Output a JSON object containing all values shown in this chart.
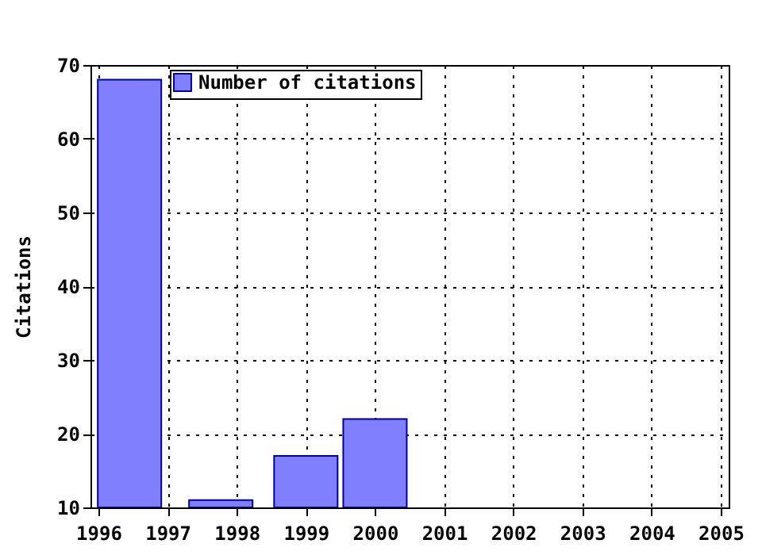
{
  "chart_data": {
    "type": "bar",
    "ylabel": "Citations",
    "x": [
      1996.45,
      1997.77,
      1999,
      2000
    ],
    "series": [
      {
        "name": "Number of citations",
        "color": "#8080ff",
        "values": [
          68,
          11,
          17,
          22
        ]
      }
    ],
    "xlim": [
      1996,
      2005
    ],
    "xticks": [
      1996,
      1997,
      1998,
      1999,
      2000,
      2001,
      2002,
      2003,
      2004,
      2005
    ],
    "ylim": [
      10,
      70
    ],
    "yticks": [
      10,
      20,
      30,
      40,
      50,
      60,
      70
    ],
    "grid": true,
    "legend": "top left"
  }
}
